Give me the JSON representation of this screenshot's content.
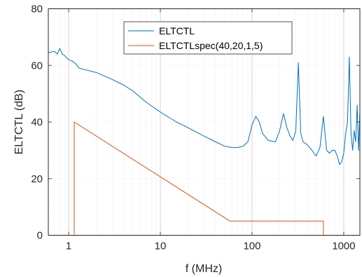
{
  "chart_data": {
    "type": "line",
    "xscale": "log",
    "xlabel": "f (MHz)",
    "ylabel": "ELTCTL (dB)",
    "xlim": [
      0.6,
      1500
    ],
    "ylim": [
      0,
      80
    ],
    "xticks": [
      1,
      10,
      100,
      1000
    ],
    "xtick_labels": [
      "1",
      "10",
      "100",
      "1000"
    ],
    "yticks": [
      0,
      20,
      40,
      60,
      80
    ],
    "ytick_labels": [
      "0",
      "20",
      "40",
      "60",
      "80"
    ],
    "grid": "on (minor on log x)",
    "legend_placement": "top-center",
    "series": [
      {
        "name": "ELTCTL",
        "color": "#0072BD",
        "x": [
          0.6,
          0.7,
          0.75,
          0.8,
          0.85,
          0.9,
          1.0,
          1.1,
          1.2,
          1.3,
          1.5,
          2,
          3,
          4,
          5,
          7,
          10,
          15,
          20,
          30,
          40,
          50,
          60,
          70,
          80,
          90,
          100,
          110,
          120,
          130,
          150,
          180,
          200,
          220,
          240,
          260,
          280,
          300,
          320,
          340,
          360,
          400,
          450,
          500,
          550,
          600,
          650,
          700,
          750,
          800,
          850,
          900,
          950,
          1000,
          1050,
          1100,
          1150,
          1200,
          1250,
          1300,
          1350,
          1400,
          1450,
          1500
        ],
        "y": [
          64.5,
          65,
          64,
          66,
          64,
          63.5,
          62,
          61.5,
          60.5,
          59,
          58.5,
          57.5,
          55,
          53,
          51,
          47,
          43.5,
          40,
          38,
          35,
          33,
          31.5,
          31,
          31,
          31.5,
          33,
          39,
          42,
          40,
          36,
          33.5,
          33,
          37,
          43,
          38,
          35,
          33.5,
          37,
          61,
          36,
          33,
          32,
          30,
          28,
          31,
          42,
          30,
          29,
          30,
          30,
          28,
          25,
          26,
          29,
          36,
          40,
          63,
          36,
          30,
          37,
          33,
          46,
          30,
          44
        ]
      },
      {
        "name": "ELTCTLspec(40,20,1,5)",
        "color": "#D95319",
        "x": [
          1.15,
          1.15,
          57.5,
          600,
          600
        ],
        "y": [
          0,
          40,
          5,
          5,
          0
        ]
      }
    ]
  }
}
